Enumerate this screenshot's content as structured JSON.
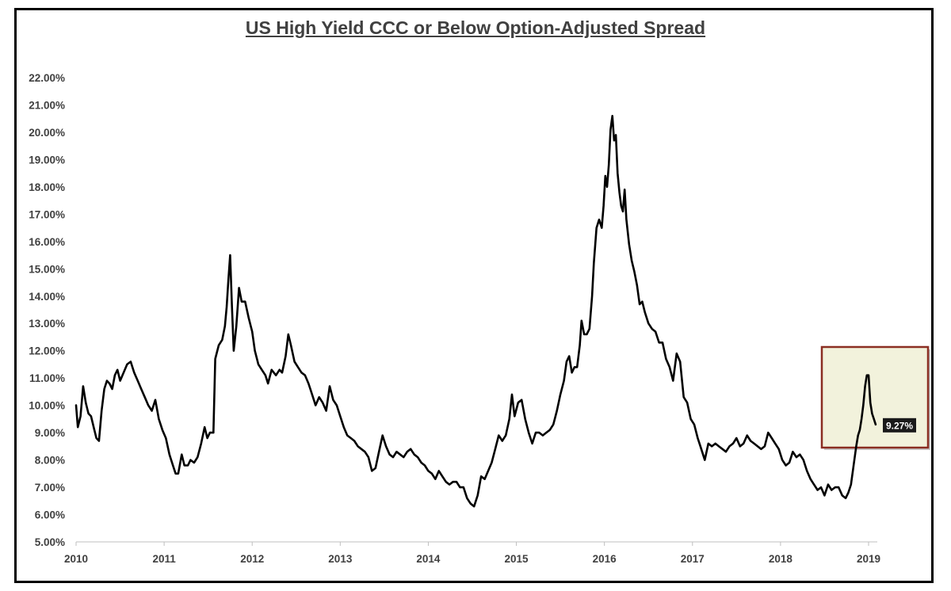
{
  "chart_data": {
    "type": "line",
    "title": "US High Yield CCC or Below Option-Adjusted Spread",
    "xlabel": "",
    "ylabel": "",
    "x_ticks": [
      "2010",
      "2011",
      "2012",
      "2013",
      "2014",
      "2015",
      "2016",
      "2017",
      "2018",
      "2019"
    ],
    "y_ticks": [
      "5.00%",
      "6.00%",
      "7.00%",
      "8.00%",
      "9.00%",
      "10.00%",
      "11.00%",
      "12.00%",
      "13.00%",
      "14.00%",
      "15.00%",
      "16.00%",
      "17.00%",
      "18.00%",
      "19.00%",
      "20.00%",
      "21.00%",
      "22.00%"
    ],
    "xlim": [
      2010.0,
      2019.1
    ],
    "ylim": [
      5,
      22.5
    ],
    "grid": false,
    "legend": "none",
    "line_color": "#000000",
    "series": [
      {
        "points": [
          [
            2010.0,
            10.0
          ],
          [
            2010.02,
            9.2
          ],
          [
            2010.05,
            9.6
          ],
          [
            2010.08,
            10.7
          ],
          [
            2010.11,
            10.1
          ],
          [
            2010.14,
            9.7
          ],
          [
            2010.17,
            9.6
          ],
          [
            2010.2,
            9.2
          ],
          [
            2010.23,
            8.8
          ],
          [
            2010.26,
            8.7
          ],
          [
            2010.29,
            9.8
          ],
          [
            2010.32,
            10.6
          ],
          [
            2010.35,
            10.9
          ],
          [
            2010.38,
            10.8
          ],
          [
            2010.41,
            10.6
          ],
          [
            2010.44,
            11.1
          ],
          [
            2010.47,
            11.3
          ],
          [
            2010.5,
            10.9
          ],
          [
            2010.54,
            11.2
          ],
          [
            2010.58,
            11.5
          ],
          [
            2010.62,
            11.6
          ],
          [
            2010.66,
            11.2
          ],
          [
            2010.7,
            10.9
          ],
          [
            2010.74,
            10.6
          ],
          [
            2010.78,
            10.3
          ],
          [
            2010.82,
            10.0
          ],
          [
            2010.86,
            9.8
          ],
          [
            2010.9,
            10.2
          ],
          [
            2010.94,
            9.5
          ],
          [
            2010.98,
            9.1
          ],
          [
            2011.02,
            8.8
          ],
          [
            2011.06,
            8.2
          ],
          [
            2011.1,
            7.8
          ],
          [
            2011.13,
            7.5
          ],
          [
            2011.16,
            7.5
          ],
          [
            2011.2,
            8.2
          ],
          [
            2011.23,
            7.8
          ],
          [
            2011.27,
            7.8
          ],
          [
            2011.3,
            8.0
          ],
          [
            2011.34,
            7.9
          ],
          [
            2011.38,
            8.1
          ],
          [
            2011.42,
            8.6
          ],
          [
            2011.46,
            9.2
          ],
          [
            2011.49,
            8.8
          ],
          [
            2011.52,
            9.0
          ],
          [
            2011.56,
            9.0
          ],
          [
            2011.58,
            11.7
          ],
          [
            2011.62,
            12.2
          ],
          [
            2011.66,
            12.4
          ],
          [
            2011.69,
            12.9
          ],
          [
            2011.71,
            13.6
          ],
          [
            2011.73,
            14.6
          ],
          [
            2011.75,
            15.5
          ],
          [
            2011.77,
            13.6
          ],
          [
            2011.79,
            12.0
          ],
          [
            2011.82,
            12.9
          ],
          [
            2011.85,
            14.3
          ],
          [
            2011.88,
            13.8
          ],
          [
            2011.92,
            13.8
          ],
          [
            2011.96,
            13.2
          ],
          [
            2012.0,
            12.7
          ],
          [
            2012.03,
            12.0
          ],
          [
            2012.07,
            11.5
          ],
          [
            2012.11,
            11.3
          ],
          [
            2012.15,
            11.1
          ],
          [
            2012.18,
            10.8
          ],
          [
            2012.22,
            11.3
          ],
          [
            2012.27,
            11.1
          ],
          [
            2012.31,
            11.3
          ],
          [
            2012.34,
            11.2
          ],
          [
            2012.38,
            11.8
          ],
          [
            2012.41,
            12.6
          ],
          [
            2012.44,
            12.2
          ],
          [
            2012.48,
            11.6
          ],
          [
            2012.52,
            11.4
          ],
          [
            2012.56,
            11.2
          ],
          [
            2012.6,
            11.1
          ],
          [
            2012.64,
            10.8
          ],
          [
            2012.68,
            10.4
          ],
          [
            2012.72,
            10.0
          ],
          [
            2012.76,
            10.3
          ],
          [
            2012.8,
            10.1
          ],
          [
            2012.84,
            9.8
          ],
          [
            2012.88,
            10.7
          ],
          [
            2012.92,
            10.2
          ],
          [
            2012.96,
            10.0
          ],
          [
            2013.0,
            9.6
          ],
          [
            2013.04,
            9.2
          ],
          [
            2013.08,
            8.9
          ],
          [
            2013.12,
            8.8
          ],
          [
            2013.16,
            8.7
          ],
          [
            2013.2,
            8.5
          ],
          [
            2013.24,
            8.4
          ],
          [
            2013.28,
            8.3
          ],
          [
            2013.32,
            8.1
          ],
          [
            2013.36,
            7.6
          ],
          [
            2013.4,
            7.7
          ],
          [
            2013.44,
            8.3
          ],
          [
            2013.48,
            8.9
          ],
          [
            2013.52,
            8.5
          ],
          [
            2013.56,
            8.2
          ],
          [
            2013.6,
            8.1
          ],
          [
            2013.64,
            8.3
          ],
          [
            2013.68,
            8.2
          ],
          [
            2013.72,
            8.1
          ],
          [
            2013.76,
            8.3
          ],
          [
            2013.8,
            8.4
          ],
          [
            2013.84,
            8.2
          ],
          [
            2013.88,
            8.1
          ],
          [
            2013.92,
            7.9
          ],
          [
            2013.96,
            7.8
          ],
          [
            2014.0,
            7.6
          ],
          [
            2014.04,
            7.5
          ],
          [
            2014.08,
            7.3
          ],
          [
            2014.12,
            7.6
          ],
          [
            2014.16,
            7.4
          ],
          [
            2014.2,
            7.2
          ],
          [
            2014.24,
            7.1
          ],
          [
            2014.28,
            7.2
          ],
          [
            2014.32,
            7.2
          ],
          [
            2014.36,
            7.0
          ],
          [
            2014.4,
            7.0
          ],
          [
            2014.44,
            6.6
          ],
          [
            2014.48,
            6.4
          ],
          [
            2014.52,
            6.3
          ],
          [
            2014.56,
            6.7
          ],
          [
            2014.6,
            7.4
          ],
          [
            2014.64,
            7.3
          ],
          [
            2014.68,
            7.6
          ],
          [
            2014.72,
            7.9
          ],
          [
            2014.76,
            8.4
          ],
          [
            2014.8,
            8.9
          ],
          [
            2014.84,
            8.7
          ],
          [
            2014.88,
            8.9
          ],
          [
            2014.92,
            9.5
          ],
          [
            2014.95,
            10.4
          ],
          [
            2014.98,
            9.6
          ],
          [
            2015.02,
            10.1
          ],
          [
            2015.06,
            10.2
          ],
          [
            2015.1,
            9.5
          ],
          [
            2015.14,
            9.0
          ],
          [
            2015.18,
            8.6
          ],
          [
            2015.22,
            9.0
          ],
          [
            2015.26,
            9.0
          ],
          [
            2015.3,
            8.9
          ],
          [
            2015.34,
            9.0
          ],
          [
            2015.38,
            9.1
          ],
          [
            2015.42,
            9.3
          ],
          [
            2015.46,
            9.8
          ],
          [
            2015.5,
            10.4
          ],
          [
            2015.54,
            10.9
          ],
          [
            2015.57,
            11.6
          ],
          [
            2015.6,
            11.8
          ],
          [
            2015.63,
            11.2
          ],
          [
            2015.66,
            11.4
          ],
          [
            2015.69,
            11.4
          ],
          [
            2015.72,
            12.2
          ],
          [
            2015.74,
            13.1
          ],
          [
            2015.77,
            12.6
          ],
          [
            2015.8,
            12.6
          ],
          [
            2015.83,
            12.8
          ],
          [
            2015.86,
            14.0
          ],
          [
            2015.88,
            15.2
          ],
          [
            2015.91,
            16.5
          ],
          [
            2015.94,
            16.8
          ],
          [
            2015.97,
            16.5
          ],
          [
            2015.99,
            17.3
          ],
          [
            2016.01,
            18.4
          ],
          [
            2016.03,
            18.0
          ],
          [
            2016.05,
            18.8
          ],
          [
            2016.07,
            20.1
          ],
          [
            2016.09,
            20.6
          ],
          [
            2016.11,
            19.7
          ],
          [
            2016.13,
            19.9
          ],
          [
            2016.15,
            18.5
          ],
          [
            2016.17,
            17.8
          ],
          [
            2016.19,
            17.3
          ],
          [
            2016.21,
            17.1
          ],
          [
            2016.23,
            17.9
          ],
          [
            2016.25,
            16.8
          ],
          [
            2016.28,
            15.9
          ],
          [
            2016.31,
            15.3
          ],
          [
            2016.34,
            14.9
          ],
          [
            2016.37,
            14.4
          ],
          [
            2016.4,
            13.7
          ],
          [
            2016.43,
            13.8
          ],
          [
            2016.46,
            13.4
          ],
          [
            2016.5,
            13.0
          ],
          [
            2016.54,
            12.8
          ],
          [
            2016.58,
            12.7
          ],
          [
            2016.62,
            12.3
          ],
          [
            2016.66,
            12.3
          ],
          [
            2016.7,
            11.7
          ],
          [
            2016.74,
            11.4
          ],
          [
            2016.78,
            10.9
          ],
          [
            2016.82,
            11.9
          ],
          [
            2016.86,
            11.6
          ],
          [
            2016.9,
            10.3
          ],
          [
            2016.94,
            10.1
          ],
          [
            2016.98,
            9.5
          ],
          [
            2017.02,
            9.3
          ],
          [
            2017.06,
            8.8
          ],
          [
            2017.1,
            8.4
          ],
          [
            2017.14,
            8.0
          ],
          [
            2017.18,
            8.6
          ],
          [
            2017.22,
            8.5
          ],
          [
            2017.26,
            8.6
          ],
          [
            2017.3,
            8.5
          ],
          [
            2017.34,
            8.4
          ],
          [
            2017.38,
            8.3
          ],
          [
            2017.42,
            8.5
          ],
          [
            2017.46,
            8.6
          ],
          [
            2017.5,
            8.8
          ],
          [
            2017.54,
            8.5
          ],
          [
            2017.58,
            8.6
          ],
          [
            2017.62,
            8.9
          ],
          [
            2017.66,
            8.7
          ],
          [
            2017.7,
            8.6
          ],
          [
            2017.74,
            8.5
          ],
          [
            2017.78,
            8.4
          ],
          [
            2017.82,
            8.5
          ],
          [
            2017.86,
            9.0
          ],
          [
            2017.9,
            8.8
          ],
          [
            2017.94,
            8.6
          ],
          [
            2017.98,
            8.4
          ],
          [
            2018.02,
            8.0
          ],
          [
            2018.06,
            7.8
          ],
          [
            2018.1,
            7.9
          ],
          [
            2018.14,
            8.3
          ],
          [
            2018.18,
            8.1
          ],
          [
            2018.22,
            8.2
          ],
          [
            2018.26,
            8.0
          ],
          [
            2018.3,
            7.6
          ],
          [
            2018.34,
            7.3
          ],
          [
            2018.38,
            7.1
          ],
          [
            2018.42,
            6.9
          ],
          [
            2018.46,
            7.0
          ],
          [
            2018.5,
            6.7
          ],
          [
            2018.54,
            7.1
          ],
          [
            2018.58,
            6.9
          ],
          [
            2018.62,
            7.0
          ],
          [
            2018.66,
            7.0
          ],
          [
            2018.7,
            6.7
          ],
          [
            2018.74,
            6.6
          ],
          [
            2018.77,
            6.8
          ],
          [
            2018.8,
            7.1
          ],
          [
            2018.83,
            7.8
          ],
          [
            2018.86,
            8.5
          ],
          [
            2018.88,
            8.9
          ],
          [
            2018.9,
            9.1
          ],
          [
            2018.92,
            9.5
          ],
          [
            2018.94,
            10.0
          ],
          [
            2018.96,
            10.7
          ],
          [
            2018.98,
            11.1
          ],
          [
            2019.0,
            11.1
          ],
          [
            2019.02,
            10.1
          ],
          [
            2019.04,
            9.7
          ],
          [
            2019.06,
            9.5
          ],
          [
            2019.08,
            9.3
          ]
        ]
      }
    ],
    "annotation": {
      "label": "9.27%",
      "value": 9.27,
      "highlight_x": [
        2018.83,
        2019.12
      ],
      "highlight_y": [
        8.5,
        12.2
      ],
      "highlight_fill": "#f2f2dc",
      "highlight_border": "#8b2e22",
      "label_bg": "#1a1a1a",
      "label_color": "#ffffff"
    },
    "axis_color": "#bfbfbf",
    "tick_color": "#404040"
  }
}
